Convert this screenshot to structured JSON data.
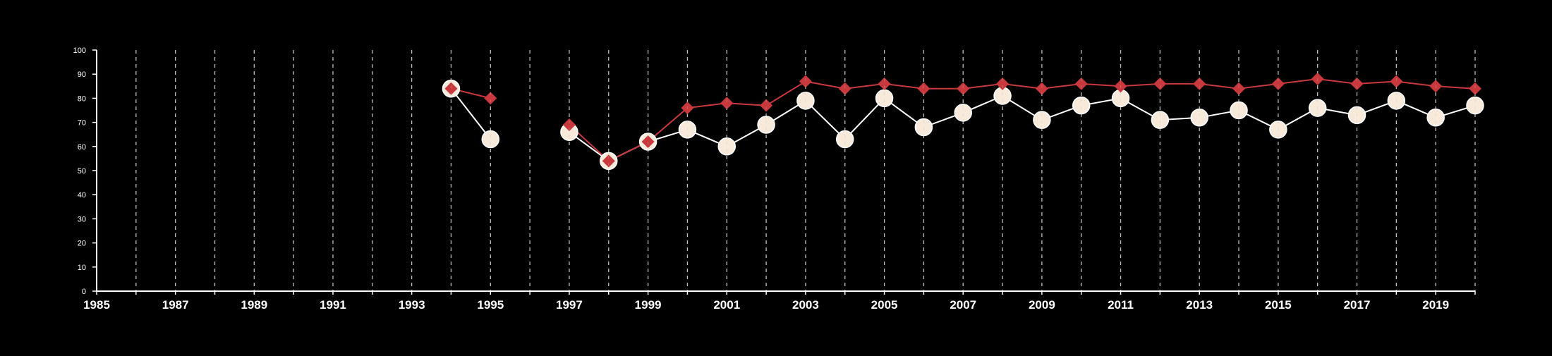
{
  "colors": {
    "background": "#000000",
    "axis": "#ffffff",
    "gridline": "#bdbdbd",
    "series_1_line": "#ffffff",
    "series_1_marker": "#f7eadb",
    "series_2": "#c8383d"
  },
  "chart_data": {
    "type": "line",
    "title": "",
    "xlabel": "",
    "ylabel": "",
    "xlim": [
      1985,
      2020
    ],
    "ylim": [
      0,
      100
    ],
    "x_ticks": [
      "1985",
      "1987",
      "1989",
      "1991",
      "1993",
      "1995",
      "1997",
      "1999",
      "2001",
      "2003",
      "2005",
      "2007",
      "2009",
      "2011",
      "2013",
      "2015",
      "2017",
      "2019"
    ],
    "y_ticks": [
      "0",
      "10",
      "20",
      "30",
      "40",
      "50",
      "60",
      "70",
      "80",
      "90",
      "100"
    ],
    "grid": "vertical dashed lines at each year",
    "legend": "none",
    "series": [
      {
        "marker": "circle",
        "color": "#f7eadb",
        "points": [
          {
            "x": 1994,
            "y": 84
          },
          {
            "x": 1995,
            "y": 63
          },
          {
            "x": 1997,
            "y": 66
          },
          {
            "x": 1998,
            "y": 54
          },
          {
            "x": 1999,
            "y": 62
          },
          {
            "x": 2000,
            "y": 67
          },
          {
            "x": 2001,
            "y": 60
          },
          {
            "x": 2002,
            "y": 69
          },
          {
            "x": 2003,
            "y": 79
          },
          {
            "x": 2004,
            "y": 63
          },
          {
            "x": 2005,
            "y": 80
          },
          {
            "x": 2006,
            "y": 68
          },
          {
            "x": 2007,
            "y": 74
          },
          {
            "x": 2008,
            "y": 81
          },
          {
            "x": 2009,
            "y": 71
          },
          {
            "x": 2010,
            "y": 77
          },
          {
            "x": 2011,
            "y": 80
          },
          {
            "x": 2012,
            "y": 71
          },
          {
            "x": 2013,
            "y": 72
          },
          {
            "x": 2014,
            "y": 75
          },
          {
            "x": 2015,
            "y": 67
          },
          {
            "x": 2016,
            "y": 76
          },
          {
            "x": 2017,
            "y": 73
          },
          {
            "x": 2018,
            "y": 79
          },
          {
            "x": 2019,
            "y": 72
          },
          {
            "x": 2020,
            "y": 77
          }
        ]
      },
      {
        "marker": "diamond",
        "color": "#c8383d",
        "points": [
          {
            "x": 1994,
            "y": 84
          },
          {
            "x": 1995,
            "y": 80
          },
          {
            "x": 1997,
            "y": 69
          },
          {
            "x": 1998,
            "y": 54
          },
          {
            "x": 1999,
            "y": 62
          },
          {
            "x": 2000,
            "y": 76
          },
          {
            "x": 2001,
            "y": 78
          },
          {
            "x": 2002,
            "y": 77
          },
          {
            "x": 2003,
            "y": 87
          },
          {
            "x": 2004,
            "y": 84
          },
          {
            "x": 2005,
            "y": 86
          },
          {
            "x": 2006,
            "y": 84
          },
          {
            "x": 2007,
            "y": 84
          },
          {
            "x": 2008,
            "y": 86
          },
          {
            "x": 2009,
            "y": 84
          },
          {
            "x": 2010,
            "y": 86
          },
          {
            "x": 2011,
            "y": 85
          },
          {
            "x": 2012,
            "y": 86
          },
          {
            "x": 2013,
            "y": 86
          },
          {
            "x": 2014,
            "y": 84
          },
          {
            "x": 2015,
            "y": 86
          },
          {
            "x": 2016,
            "y": 88
          },
          {
            "x": 2017,
            "y": 86
          },
          {
            "x": 2018,
            "y": 87
          },
          {
            "x": 2019,
            "y": 85
          },
          {
            "x": 2020,
            "y": 84
          }
        ]
      }
    ]
  }
}
